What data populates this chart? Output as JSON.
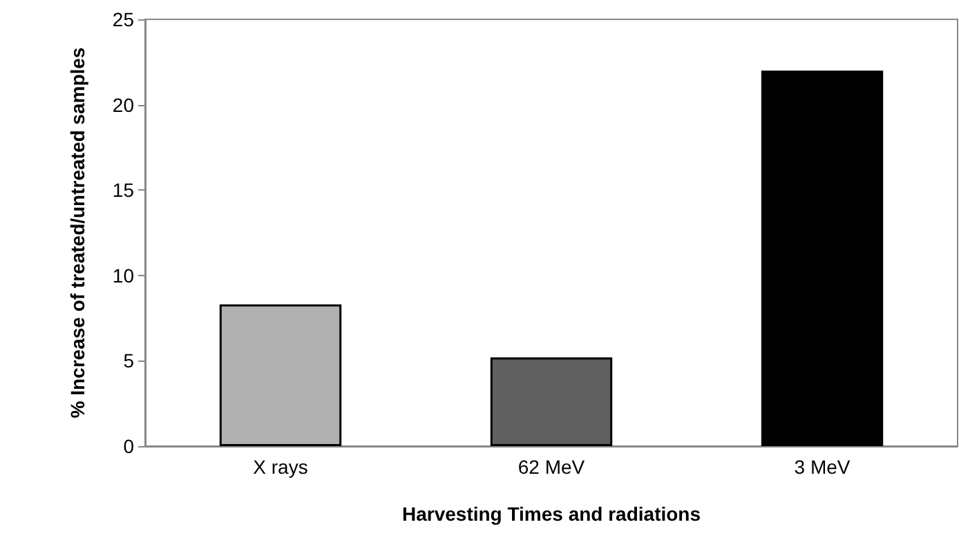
{
  "chart_data": {
    "type": "bar",
    "xlabel": "Harvesting Times and radiations",
    "ylabel": "% Increase of treated/untreated samples",
    "categories": [
      "X rays",
      "62 MeV",
      "3 MeV"
    ],
    "values": [
      8.3,
      5.2,
      22
    ],
    "colors": [
      "#b0b0b0",
      "#606060",
      "#000000"
    ],
    "ylim": [
      0,
      25
    ],
    "yticks": [
      0,
      5,
      10,
      15,
      20,
      25
    ],
    "grid": false
  }
}
